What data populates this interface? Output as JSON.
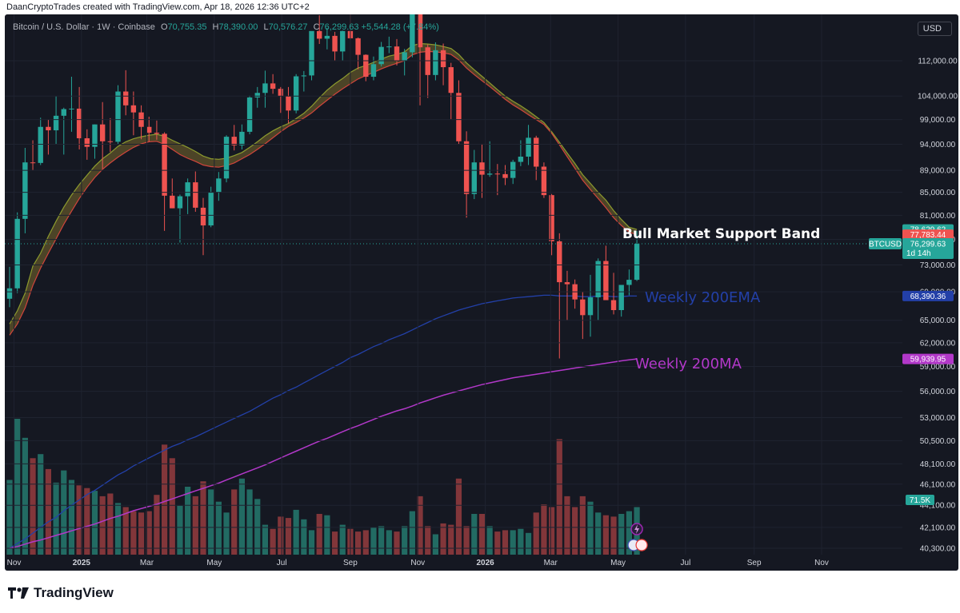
{
  "header": {
    "credit": "DaanCryptoTrades created with TradingView.com, Apr 18, 2026 12:36 UTC+2"
  },
  "legend": {
    "symbol": "Bitcoin / U.S. Dollar · 1W · Coinbase",
    "open_label": "O",
    "open": "70,755.35",
    "high_label": "H",
    "high": "78,390.00",
    "low_label": "L",
    "low": "70,576.27",
    "close_label": "C",
    "close": "76,299.63",
    "change": "+5,544.28 (+7.84%)"
  },
  "currency_button": "USD",
  "annotations": {
    "bull_band": "Bull Market Support Band",
    "ema200": "Weekly 200EMA",
    "ma200": "Weekly 200MA"
  },
  "price_tags": {
    "band_upper": "78,629.62",
    "band_lower": "77,783.44",
    "symbol_tag": "BTCUSD",
    "last_price": "76,299.63",
    "countdown": "1d 14h",
    "ema200": "68,390.36",
    "ma200": "59,939.95",
    "volume": "71.5K"
  },
  "footer": {
    "brand": "TradingView"
  },
  "colors": {
    "background": "#151822",
    "up": "#26a69a",
    "down": "#ef5350",
    "band_green": "#8c9b2e",
    "band_red": "#d0453c",
    "ema200": "#2340a8",
    "ma200": "#b238c9",
    "volume_up": "#226b63",
    "volume_down": "#82363a"
  },
  "chart_data": {
    "type": "candlestick",
    "interval": "1W",
    "y_axis": {
      "scale": "log",
      "ticks": [
        112000,
        104000,
        99000,
        94000,
        89000,
        85000,
        81000,
        77000,
        73000,
        69000,
        65000,
        62000,
        59000,
        56000,
        53000,
        50500,
        48100,
        46100,
        44100,
        42100,
        40300
      ],
      "tick_labels": [
        "112,000.00",
        "104,000.00",
        "99,000.00",
        "94,000.00",
        "89,000.00",
        "85,000.00",
        "81,000.00",
        "77,000.00",
        "73,000.00",
        "69,000.00",
        "65,000.00",
        "62,000.00",
        "59,000.00",
        "56,000.00",
        "53,000.00",
        "50,500.00",
        "48,100.00",
        "46,100.00",
        "44,100.00",
        "42,100.00",
        "40,300.00"
      ]
    },
    "x_axis": {
      "start_date": "2024-10-28",
      "labels": [
        {
          "text": "Nov",
          "date": "2024-11-01"
        },
        {
          "text": "2025",
          "date": "2025-01-01",
          "strong": true
        },
        {
          "text": "Mar",
          "date": "2025-03-01"
        },
        {
          "text": "May",
          "date": "2025-05-01"
        },
        {
          "text": "Jul",
          "date": "2025-07-01"
        },
        {
          "text": "Sep",
          "date": "2025-09-01"
        },
        {
          "text": "Nov",
          "date": "2025-11-01"
        },
        {
          "text": "2026",
          "date": "2026-01-01",
          "strong": true
        },
        {
          "text": "Mar",
          "date": "2026-03-01"
        },
        {
          "text": "May",
          "date": "2026-05-01"
        },
        {
          "text": "Jul",
          "date": "2026-07-01"
        },
        {
          "text": "Sep",
          "date": "2026-09-01"
        },
        {
          "text": "Nov",
          "date": "2026-11-01"
        }
      ]
    },
    "ohlc": [
      [
        68000,
        72700,
        66800,
        69500
      ],
      [
        69500,
        81500,
        68800,
        80400
      ],
      [
        80400,
        93300,
        78000,
        90500
      ],
      [
        90500,
        94800,
        89000,
        90400
      ],
      [
        90400,
        99400,
        90000,
        97500
      ],
      [
        97500,
        99000,
        92000,
        96800
      ],
      [
        96800,
        104000,
        94000,
        99800
      ],
      [
        99800,
        101500,
        92000,
        101200
      ],
      [
        101200,
        108300,
        96500,
        101300
      ],
      [
        101300,
        106000,
        93000,
        95200
      ],
      [
        95200,
        97000,
        91000,
        93500
      ],
      [
        93500,
        98000,
        91200,
        98000
      ],
      [
        98000,
        102700,
        89300,
        94600
      ],
      [
        94600,
        99300,
        92500,
        94500
      ],
      [
        94500,
        106400,
        94000,
        105000
      ],
      [
        105000,
        109800,
        99900,
        102000
      ],
      [
        102000,
        105000,
        95800,
        100500
      ],
      [
        100500,
        102000,
        95000,
        97500
      ],
      [
        97500,
        99600,
        94500,
        96300
      ],
      [
        96300,
        98800,
        94900,
        96100
      ],
      [
        96100,
        96400,
        78400,
        84400
      ],
      [
        84400,
        87500,
        82200,
        82200
      ],
      [
        82200,
        84600,
        76500,
        84300
      ],
      [
        84300,
        87500,
        81200,
        86800
      ],
      [
        86800,
        88800,
        81600,
        82300
      ],
      [
        82300,
        84000,
        74500,
        79300
      ],
      [
        79300,
        86000,
        79000,
        85000
      ],
      [
        85000,
        88700,
        83500,
        87500
      ],
      [
        87500,
        95800,
        86800,
        95500
      ],
      [
        95500,
        97900,
        92800,
        93800
      ],
      [
        93800,
        98000,
        93000,
        96500
      ],
      [
        96500,
        104100,
        96000,
        103700
      ],
      [
        103700,
        106000,
        101500,
        104700
      ],
      [
        104700,
        109700,
        101500,
        106800
      ],
      [
        106800,
        108900,
        104500,
        105600
      ],
      [
        105600,
        106000,
        100400,
        104000
      ],
      [
        104000,
        106000,
        98200,
        100900
      ],
      [
        100900,
        108900,
        100300,
        108400
      ],
      [
        108400,
        109600,
        105000,
        108600
      ],
      [
        108600,
        119000,
        107500,
        119200
      ],
      [
        119200,
        123200,
        116000,
        117300
      ],
      [
        117300,
        120000,
        114700,
        118000
      ],
      [
        118000,
        119000,
        112000,
        114200
      ],
      [
        114200,
        119300,
        112000,
        119200
      ],
      [
        119200,
        124400,
        117000,
        117400
      ],
      [
        117400,
        117600,
        110000,
        113400
      ],
      [
        113400,
        113500,
        107300,
        108300
      ],
      [
        108300,
        113000,
        107500,
        111200
      ],
      [
        111200,
        116500,
        110700,
        115300
      ],
      [
        115300,
        117800,
        113800,
        115400
      ],
      [
        115400,
        117200,
        110900,
        112000
      ],
      [
        112000,
        114800,
        108600,
        114000
      ],
      [
        114000,
        126200,
        112800,
        124800
      ],
      [
        124800,
        126100,
        102000,
        115200
      ],
      [
        115200,
        115900,
        103600,
        108700
      ],
      [
        108700,
        116400,
        107500,
        114500
      ],
      [
        114500,
        116100,
        106400,
        110500
      ],
      [
        110500,
        111500,
        99100,
        104700
      ],
      [
        104700,
        107500,
        94000,
        94600
      ],
      [
        94600,
        96600,
        80600,
        84700
      ],
      [
        84700,
        92900,
        83800,
        90500
      ],
      [
        90500,
        94100,
        84000,
        88200
      ],
      [
        88200,
        94600,
        87800,
        88400
      ],
      [
        88400,
        90200,
        84500,
        88300
      ],
      [
        88300,
        90000,
        86300,
        87600
      ],
      [
        87600,
        91000,
        86500,
        90600
      ],
      [
        90600,
        94800,
        89800,
        91600
      ],
      [
        91600,
        97900,
        90000,
        95300
      ],
      [
        95300,
        95700,
        87200,
        89700
      ],
      [
        89700,
        90500,
        84000,
        84500
      ],
      [
        84500,
        84700,
        74500,
        76700
      ],
      [
        76700,
        78000,
        60000,
        70400
      ],
      [
        70400,
        72100,
        65000,
        70100
      ],
      [
        70100,
        70800,
        66600,
        67900
      ],
      [
        67900,
        69000,
        62500,
        65700
      ],
      [
        65700,
        71500,
        62800,
        68200
      ],
      [
        68200,
        74000,
        65000,
        73600
      ],
      [
        73600,
        76000,
        68000,
        67800
      ],
      [
        67800,
        71800,
        65800,
        66400
      ],
      [
        66400,
        70000,
        65500,
        70000
      ],
      [
        70000,
        72300,
        68500,
        70755
      ],
      [
        70755,
        78390,
        70576,
        76300
      ]
    ],
    "volume_relative": [
      0.55,
      1.0,
      0.86,
      0.71,
      0.74,
      0.63,
      0.53,
      0.62,
      0.55,
      0.51,
      0.49,
      0.47,
      0.43,
      0.45,
      0.38,
      0.35,
      0.32,
      0.31,
      0.32,
      0.44,
      0.81,
      0.71,
      0.36,
      0.5,
      0.43,
      0.54,
      0.48,
      0.39,
      0.31,
      0.48,
      0.56,
      0.48,
      0.41,
      0.22,
      0.19,
      0.28,
      0.27,
      0.33,
      0.26,
      0.18,
      0.3,
      0.29,
      0.17,
      0.22,
      0.19,
      0.17,
      0.18,
      0.2,
      0.21,
      0.18,
      0.17,
      0.21,
      0.32,
      0.43,
      0.21,
      0.15,
      0.23,
      0.22,
      0.56,
      0.21,
      0.3,
      0.3,
      0.21,
      0.17,
      0.18,
      0.18,
      0.19,
      0.16,
      0.31,
      0.37,
      0.35,
      0.85,
      0.43,
      0.35,
      0.43,
      0.39,
      0.31,
      0.29,
      0.28,
      0.3,
      0.32,
      0.35
    ],
    "band_upper": [
      64500,
      66300,
      68800,
      72800,
      74800,
      77500,
      80000,
      82400,
      84500,
      86400,
      88100,
      89800,
      91200,
      92300,
      93600,
      94500,
      95100,
      95500,
      95800,
      96000,
      95600,
      94800,
      94100,
      93400,
      92600,
      91700,
      91200,
      91100,
      91300,
      91800,
      92400,
      93400,
      94500,
      95700,
      96700,
      97500,
      98200,
      99200,
      100300,
      101800,
      103600,
      105300,
      106700,
      107900,
      109300,
      110300,
      110900,
      111600,
      112400,
      113100,
      113500,
      114100,
      115600,
      116100,
      116000,
      115800,
      115400,
      114900,
      113500,
      111500,
      109900,
      108400,
      106900,
      105400,
      104000,
      102900,
      101900,
      100800,
      99600,
      98400,
      96500,
      94400,
      92300,
      90300,
      88200,
      86600,
      85000,
      83600,
      81800,
      80300,
      79000,
      78630
    ],
    "band_lower": [
      63000,
      64500,
      66700,
      69900,
      72500,
      74800,
      77100,
      79500,
      81700,
      83900,
      85900,
      87700,
      89200,
      90400,
      91500,
      92500,
      93400,
      94100,
      94500,
      94600,
      94000,
      93000,
      92000,
      91300,
      90700,
      90000,
      89700,
      89600,
      89900,
      90400,
      91200,
      92000,
      93000,
      94100,
      95300,
      96500,
      97600,
      98400,
      99300,
      100400,
      101800,
      103100,
      104400,
      105600,
      106700,
      107800,
      108600,
      109300,
      110100,
      110800,
      111400,
      112000,
      113400,
      114000,
      114200,
      114100,
      113900,
      113500,
      112200,
      110300,
      108800,
      107400,
      106100,
      104700,
      103300,
      102100,
      101100,
      100000,
      99000,
      98000,
      96200,
      93900,
      91600,
      89400,
      87200,
      85500,
      83900,
      82300,
      80600,
      79300,
      78200,
      77780
    ],
    "ema200": [
      40300,
      40700,
      41100,
      41600,
      42100,
      42600,
      43000,
      43600,
      44100,
      44600,
      45100,
      45500,
      46000,
      46500,
      47000,
      47400,
      47900,
      48300,
      48700,
      49100,
      49500,
      49900,
      50200,
      50600,
      50900,
      51300,
      51700,
      52100,
      52500,
      52900,
      53300,
      53700,
      54200,
      54700,
      55200,
      55600,
      56100,
      56500,
      57000,
      57500,
      58000,
      58500,
      59000,
      59500,
      60100,
      60500,
      61000,
      61500,
      61900,
      62400,
      62800,
      63200,
      63700,
      64200,
      64700,
      65200,
      65600,
      66000,
      66400,
      66700,
      67000,
      67300,
      67500,
      67700,
      67900,
      68100,
      68200,
      68300,
      68400,
      68500,
      68500,
      68400,
      68400,
      68400,
      68300,
      68300,
      68400,
      68400,
      68300,
      68300,
      68400,
      68390
    ],
    "ma200": [
      40300,
      40450,
      40650,
      40850,
      41000,
      41200,
      41400,
      41600,
      41800,
      42000,
      42200,
      42400,
      42650,
      42900,
      43100,
      43350,
      43600,
      43800,
      44000,
      44200,
      44450,
      44700,
      44950,
      45200,
      45450,
      45700,
      45950,
      46200,
      46500,
      46800,
      47100,
      47400,
      47700,
      48000,
      48350,
      48700,
      49050,
      49400,
      49750,
      50100,
      50450,
      50750,
      51100,
      51450,
      51800,
      52100,
      52450,
      52800,
      53150,
      53450,
      53750,
      54000,
      54300,
      54650,
      54950,
      55250,
      55550,
      55800,
      56050,
      56300,
      56550,
      56800,
      57000,
      57200,
      57400,
      57600,
      57750,
      57900,
      58050,
      58200,
      58350,
      58500,
      58650,
      58800,
      58950,
      59100,
      59250,
      59400,
      59550,
      59700,
      59820,
      59940
    ]
  }
}
